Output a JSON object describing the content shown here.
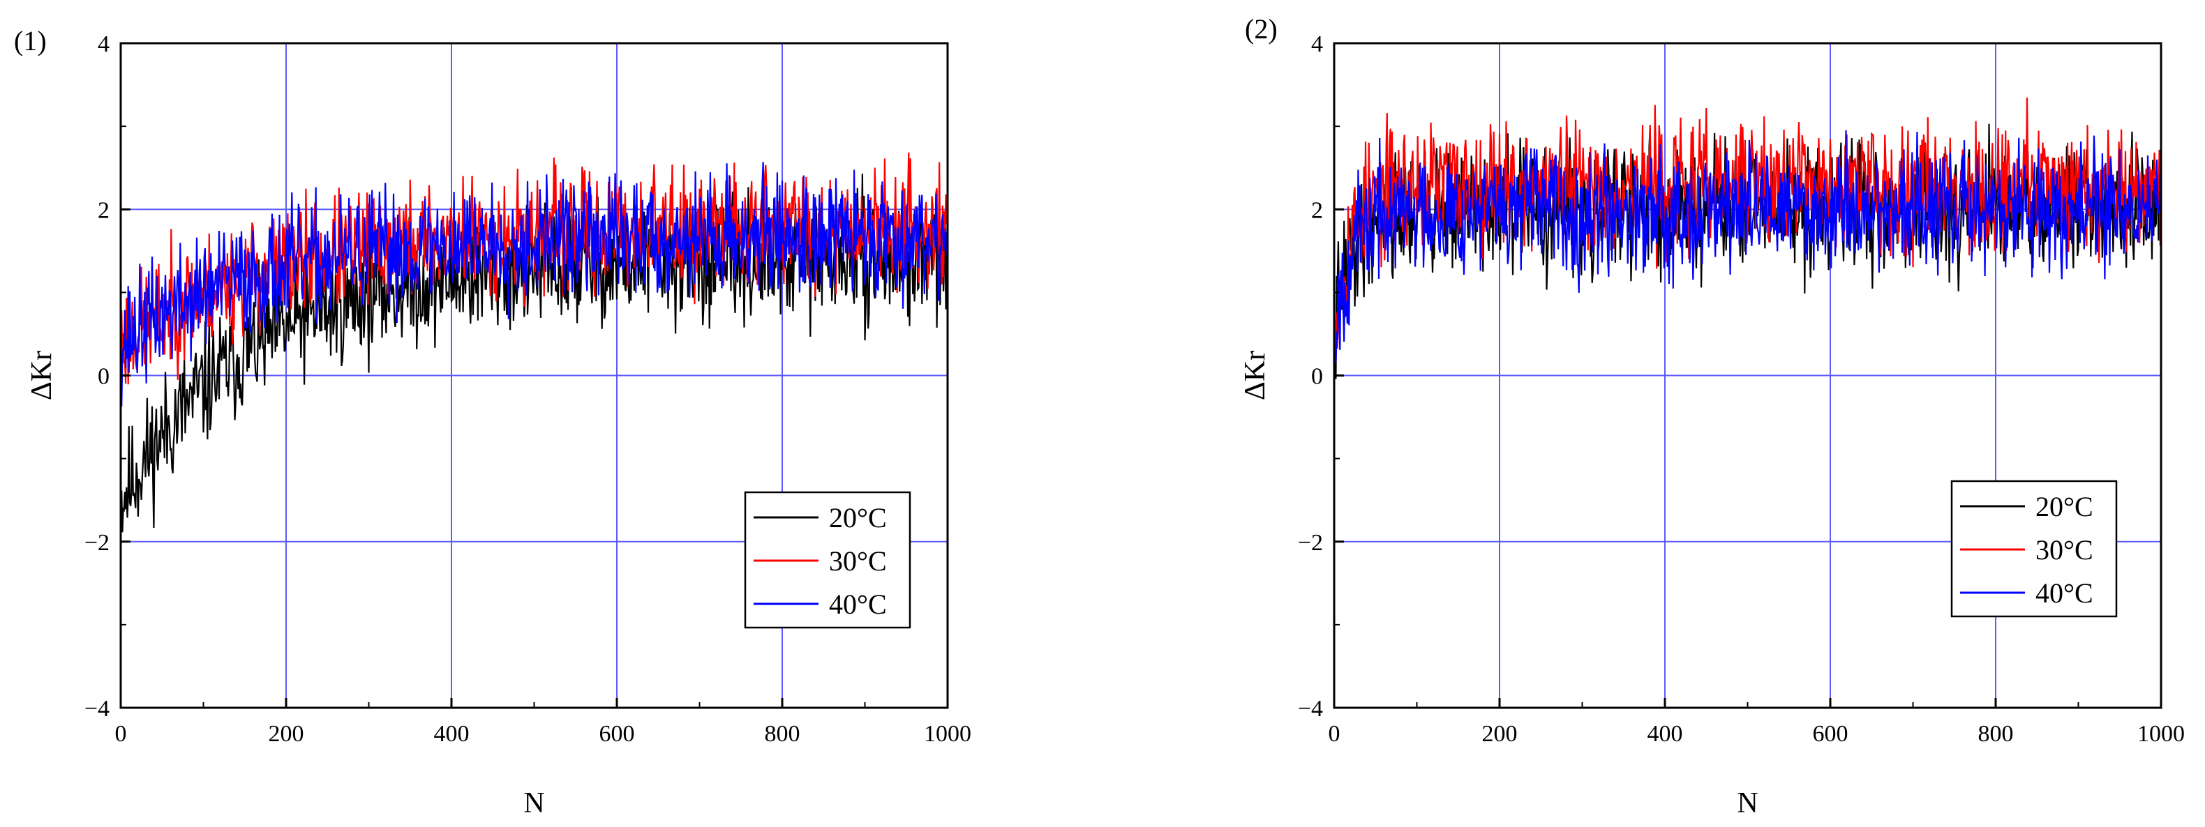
{
  "chart_data": [
    {
      "panel_label": "(1)",
      "type": "line",
      "xlabel": "N",
      "ylabel": "ΔKr",
      "xlim": [
        0,
        1000
      ],
      "ylim": [
        -4,
        4
      ],
      "x_ticks": [
        0,
        200,
        400,
        600,
        800,
        1000
      ],
      "x_tick_labels": [
        "0",
        "200",
        "400",
        "600",
        "800",
        "1000"
      ],
      "y_ticks": [
        -4,
        -2,
        0,
        2,
        4
      ],
      "y_tick_labels": [
        "−4",
        "−2",
        "0",
        "2",
        "4"
      ],
      "grid": true,
      "legend_position": "lower-right",
      "series": [
        {
          "name": "20°C",
          "color": "#000000",
          "start": -1.5,
          "plateau": 1.4,
          "tau": 160,
          "noise": 0.62,
          "seed": 11
        },
        {
          "name": "30°C",
          "color": "#ff0000",
          "start": 0.4,
          "plateau": 1.8,
          "tau": 180,
          "noise": 0.6,
          "seed": 23
        },
        {
          "name": "40°C",
          "color": "#0000ff",
          "start": 0.4,
          "plateau": 1.7,
          "tau": 170,
          "noise": 0.6,
          "seed": 37
        }
      ]
    },
    {
      "panel_label": "(2)",
      "type": "line",
      "xlabel": "N",
      "ylabel": "ΔKr",
      "xlim": [
        0,
        1000
      ],
      "ylim": [
        -4,
        4
      ],
      "x_ticks": [
        0,
        200,
        400,
        600,
        800,
        1000
      ],
      "x_tick_labels": [
        "0",
        "200",
        "400",
        "600",
        "800",
        "1000"
      ],
      "y_ticks": [
        -4,
        -2,
        0,
        2,
        4
      ],
      "y_tick_labels": [
        "−4",
        "−2",
        "0",
        "2",
        "4"
      ],
      "grid": true,
      "legend_position": "right",
      "series": [
        {
          "name": "20°C",
          "color": "#000000",
          "start": 0.5,
          "plateau": 2.0,
          "tau": 20,
          "noise": 0.65,
          "seed": 41
        },
        {
          "name": "30°C",
          "color": "#ff0000",
          "start": 0.5,
          "plateau": 2.3,
          "tau": 20,
          "noise": 0.65,
          "seed": 53
        },
        {
          "name": "40°C",
          "color": "#0000ff",
          "start": 0.5,
          "plateau": 2.0,
          "tau": 20,
          "noise": 0.62,
          "seed": 67
        }
      ]
    }
  ]
}
